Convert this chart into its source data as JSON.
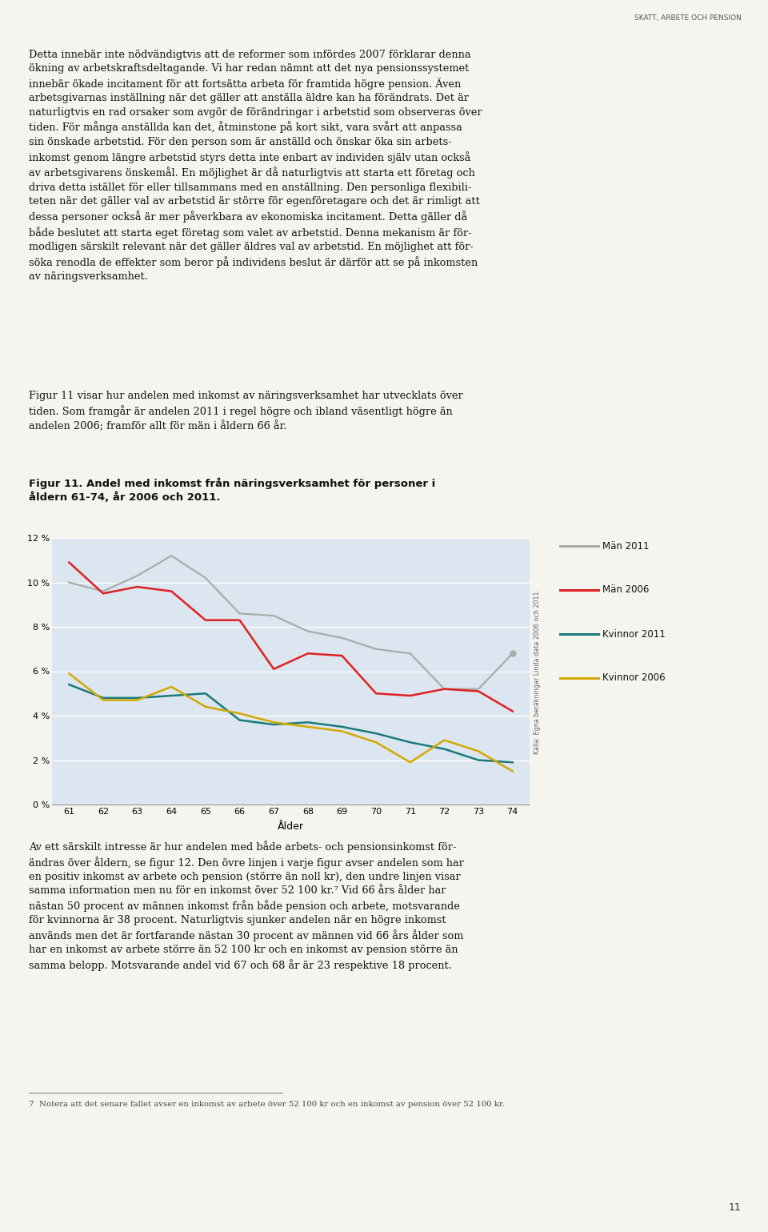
{
  "title_line1": "Figur 11. Andel med inkomst från näringsverksamhet för personer i",
  "title_line2": "åldern 61-74, år 2006 och 2011.",
  "xlabel": "Ålder",
  "ylim": [
    0,
    12
  ],
  "yticks": [
    0,
    2,
    4,
    6,
    8,
    10,
    12
  ],
  "ytick_labels": [
    "0 %",
    "2 %",
    "4 %",
    "6 %",
    "8 %",
    "10 %",
    "12 %"
  ],
  "ages": [
    61,
    62,
    63,
    64,
    65,
    66,
    67,
    68,
    69,
    70,
    71,
    72,
    73,
    74
  ],
  "man_2011": [
    10.0,
    9.6,
    10.3,
    11.2,
    10.2,
    8.6,
    8.5,
    7.8,
    7.5,
    7.0,
    6.8,
    5.2,
    5.2,
    6.8
  ],
  "man_2006": [
    10.9,
    9.5,
    9.8,
    9.6,
    8.3,
    8.3,
    6.1,
    6.8,
    6.7,
    5.0,
    4.9,
    5.2,
    5.1,
    4.2
  ],
  "kvinna_2011": [
    5.4,
    4.8,
    4.8,
    4.9,
    5.0,
    3.8,
    3.6,
    3.7,
    3.5,
    3.2,
    2.8,
    2.5,
    2.0,
    1.9
  ],
  "kvinna_2006": [
    5.9,
    4.7,
    4.7,
    5.3,
    4.4,
    4.1,
    3.7,
    3.5,
    3.3,
    2.8,
    1.9,
    2.9,
    2.4,
    1.5
  ],
  "man_2011_color": "#aaaaaa",
  "man_2006_color": "#e02020",
  "kvinna_2011_color": "#1a7a7a",
  "kvinna_2006_color": "#d4a800",
  "bg_color": "#dce6f0",
  "page_bg": "#f5f5f0",
  "source_text": "Källa: Egna beräkningar Linda data 2006 och 2011.",
  "header_text": "SKATT, ARBETE OCH PENSION",
  "page_number": "11",
  "para1_lines": [
    "Detta innebär inte nödvändigtvis att de reformer som infördes 2007 förklarar denna",
    "ökning av arbetskraftsdeltagande. Vi har redan nämnt att det nya pensionssystemet",
    "innebär ökade incitament för att fortsätta arbeta för framtida högre pension. Även",
    "arbetsgivarnas inställning när det gäller att anställa äldre kan ha förändrats. Det är",
    "naturligtvis en rad orsaker som avgör de förändringar i arbetstid som observeras över",
    "tiden. För många anställda kan det, åtminstone på kort sikt, vara svårt att anpassa",
    "sin önskade arbetstid. För den person som är anställd och önskar öka sin arbets-",
    "inkomst genom längre arbetstid styrs detta inte enbart av individen själv utan också",
    "av arbetsgivarens önskemål. En möjlighet är då naturligtvis att starta ett företag och",
    "driva detta istället för eller tillsammans med en anställning. Den personliga flexibili-",
    "teten när det gäller val av arbetstid är större för egenföretagare och det är rimligt att",
    "dessa personer också är mer påverkbara av ekonomiska incitament. Detta gäller då",
    "både beslutet att starta eget företag som valet av arbetstid. Denna mekanism är för-",
    "modligen särskilt relevant när det gäller äldres val av arbetstid. En möjlighet att för-",
    "söka renodla de effekter som beror på individens beslut är därför att se på inkomsten",
    "av näringsverksamhet."
  ],
  "para2_lines": [
    "Figur 11 visar hur andelen med inkomst av näringsverksamhet har utvecklats över",
    "tiden. Som framgår är andelen 2011 i regel högre och ibland väsentligt högre än",
    "andelen 2006; framför allt för män i åldern 66 år."
  ],
  "para3_lines": [
    "Av ett särskilt intresse är hur andelen med både arbets- och pensionsinkomst för-",
    "ändras över åldern, se figur 12. Den övre linjen i varje figur avser andelen som har",
    "en positiv inkomst av arbete och pension (större än noll kr), den undre linjen visar",
    "samma information men nu för en inkomst över 52 100 kr.⁷ Vid 66 års ålder har",
    "nästan 50 procent av männen inkomst från både pension och arbete, motsvarande",
    "för kvinnorna är 38 procent. Naturligtvis sjunker andelen när en högre inkomst",
    "används men det är fortfarande nästan 30 procent av männen vid 66 års ålder som",
    "har en inkomst av arbete större än 52 100 kr och en inkomst av pension större än",
    "samma belopp. Motsvarande andel vid 67 och 68 år är 23 respektive 18 procent."
  ],
  "footnote": "7  Notera att det senare fallet avser en inkomst av arbete över 52 100 kr och en inkomst av pension över 52 100 kr.",
  "legend_items": [
    {
      "color": "#aaaaaa",
      "label": "Män 2011"
    },
    {
      "color": "#e02020",
      "label": "Män 2006"
    },
    {
      "color": "#1a7a7a",
      "label": "Kvinnor 2011"
    },
    {
      "color": "#d4a800",
      "label": "Kvinnor 2006"
    }
  ]
}
